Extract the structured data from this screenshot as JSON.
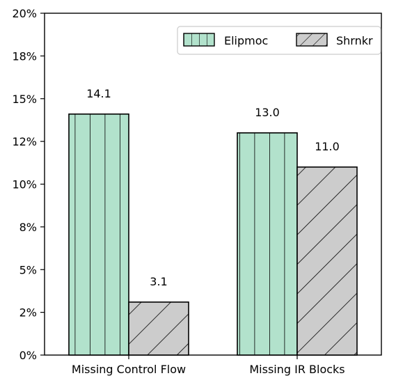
{
  "chart_data": {
    "type": "bar",
    "title": "",
    "xlabel": "",
    "ylabel": "",
    "ylim": [
      0,
      20
    ],
    "y_ticks": [
      0,
      2.5,
      5,
      7.5,
      10,
      12.5,
      15,
      17.5,
      20
    ],
    "y_tick_labels": [
      "0%",
      "2%",
      "5%",
      "8%",
      "10%",
      "12%",
      "15%",
      "18%",
      "20%"
    ],
    "categories": [
      "Missing Control Flow",
      "Missing IR Blocks"
    ],
    "series": [
      {
        "name": "Elipmoc",
        "values": [
          14.1,
          13.0
        ],
        "labels": [
          "14.1",
          "13.0"
        ],
        "color": "#b2e2cc",
        "hatch": "vertical"
      },
      {
        "name": "Shrnkr",
        "values": [
          3.1,
          11.0
        ],
        "labels": [
          "3.1",
          "11.0"
        ],
        "color": "#cccccc",
        "hatch": "diagonal"
      }
    ],
    "legend_position": "top-right",
    "grid": false
  }
}
